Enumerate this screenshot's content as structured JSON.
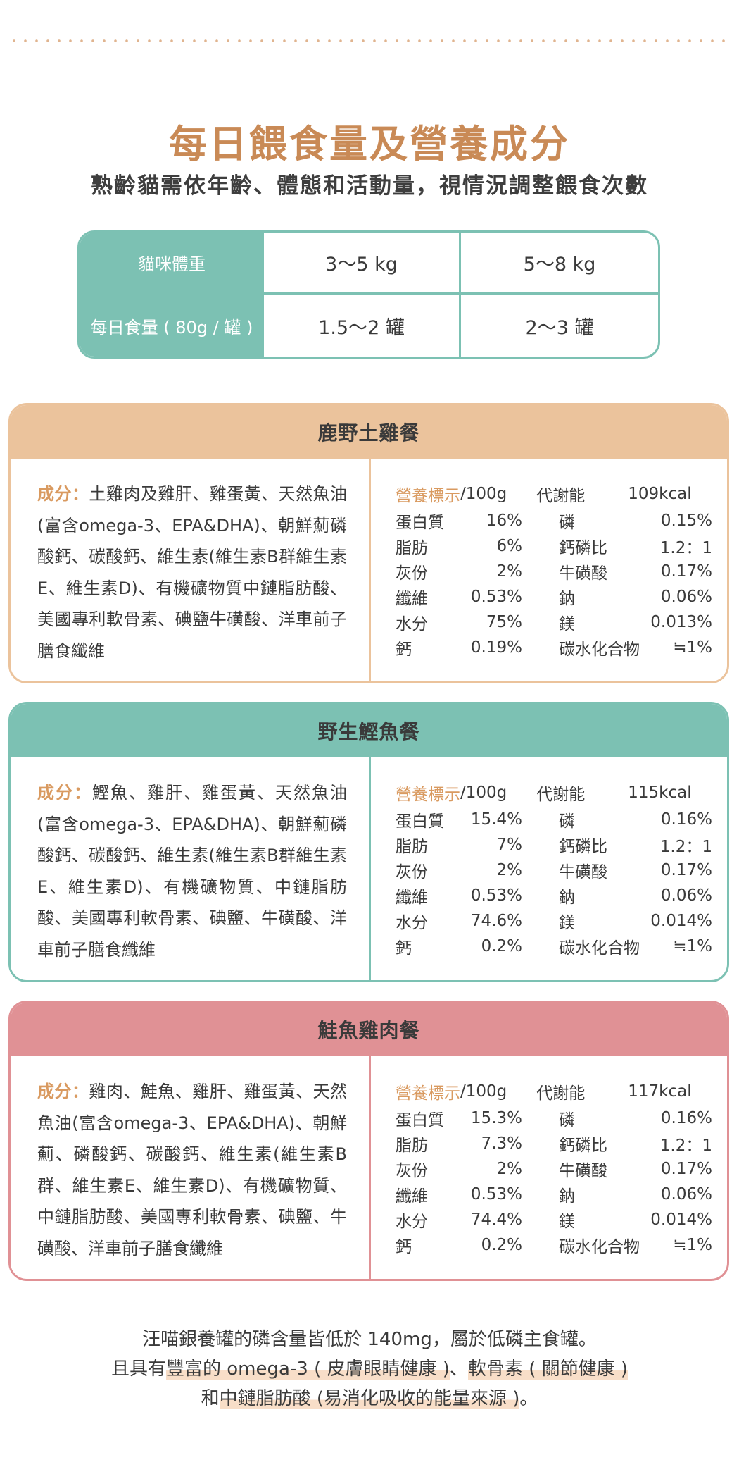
{
  "header": {
    "title": "每日餵食量及營養成分",
    "subtitle": "熟齡貓需依年齡、體態和活動量，視情況調整餵食次數"
  },
  "feeding_table": {
    "weight_label": "貓咪體重",
    "weight_1": "3～5 kg",
    "weight_2": "5～8 kg",
    "amount_label": "每日食量 ( 80g / 罐 )",
    "amount_1": "1.5～2 罐",
    "amount_2": "2～3 罐"
  },
  "products": [
    {
      "name": "鹿野土雞餐",
      "ingredients_label": "成分：",
      "ingredients": "土雞肉及雞肝、雞蛋黃、天然魚油(富含omega-3、EPA&DHA)、朝鮮薊磷酸鈣、碳酸鈣、維生素(維生素B群維生素E、維生素D)、有機礦物質中鏈脂肪酸、美國專利軟骨素、碘鹽牛磺酸、洋車前子膳食纖維",
      "nutrition_label": "營養標示",
      "nutrition_unit": "/100g",
      "energy_label": "代謝能",
      "energy": "109kcal",
      "rows": [
        {
          "k1": "蛋白質",
          "v1": "16%",
          "k2": "磷",
          "v2": "0.15%"
        },
        {
          "k1": "脂肪",
          "v1": "6%",
          "k2": "鈣磷比",
          "v2": "1.2：1"
        },
        {
          "k1": "灰份",
          "v1": "2%",
          "k2": "牛磺酸",
          "v2": "0.17%"
        },
        {
          "k1": "纖維",
          "v1": "0.53%",
          "k2": "鈉",
          "v2": "0.06%"
        },
        {
          "k1": "水分",
          "v1": "75%",
          "k2": "鎂",
          "v2": "0.013%"
        },
        {
          "k1": "鈣",
          "v1": "0.19%",
          "k2": "碳水化合物",
          "v2": "≒1%"
        }
      ]
    },
    {
      "name": "野生鰹魚餐",
      "ingredients_label": "成分：",
      "ingredients": "鰹魚、雞肝、雞蛋黃、天然魚油(富含omega-3、EPA&DHA)、朝鮮薊磷酸鈣、碳酸鈣、維生素(維生素B群維生素E、維生素D)、有機礦物質、中鏈脂肪酸、美國專利軟骨素、碘鹽、牛磺酸、洋車前子膳食纖維",
      "nutrition_label": "營養標示",
      "nutrition_unit": "/100g",
      "energy_label": "代謝能",
      "energy": "115kcal",
      "rows": [
        {
          "k1": "蛋白質",
          "v1": "15.4%",
          "k2": "磷",
          "v2": "0.16%"
        },
        {
          "k1": "脂肪",
          "v1": "7%",
          "k2": "鈣磷比",
          "v2": "1.2：1"
        },
        {
          "k1": "灰份",
          "v1": "2%",
          "k2": "牛磺酸",
          "v2": "0.17%"
        },
        {
          "k1": "纖維",
          "v1": "0.53%",
          "k2": "鈉",
          "v2": "0.06%"
        },
        {
          "k1": "水分",
          "v1": "74.6%",
          "k2": "鎂",
          "v2": "0.014%"
        },
        {
          "k1": "鈣",
          "v1": "0.2%",
          "k2": "碳水化合物",
          "v2": "≒1%"
        }
      ]
    },
    {
      "name": "鮭魚雞肉餐",
      "ingredients_label": "成分：",
      "ingredients": "雞肉、鮭魚、雞肝、雞蛋黃、天然魚油(富含omega-3、EPA&DHA)、朝鮮薊、磷酸鈣、碳酸鈣、維生素(維生素B群、維生素E、維生素D)、有機礦物質、中鏈脂肪酸、美國專利軟骨素、碘鹽、牛磺酸、洋車前子膳食纖維",
      "nutrition_label": "營養標示",
      "nutrition_unit": "/100g",
      "energy_label": "代謝能",
      "energy": "117kcal",
      "rows": [
        {
          "k1": "蛋白質",
          "v1": "15.3%",
          "k2": "磷",
          "v2": "0.16%"
        },
        {
          "k1": "脂肪",
          "v1": "7.3%",
          "k2": "鈣磷比",
          "v2": "1.2：1"
        },
        {
          "k1": "灰份",
          "v1": "2%",
          "k2": "牛磺酸",
          "v2": "0.17%"
        },
        {
          "k1": "纖維",
          "v1": "0.53%",
          "k2": "鈉",
          "v2": "0.06%"
        },
        {
          "k1": "水分",
          "v1": "74.4%",
          "k2": "鎂",
          "v2": "0.014%"
        },
        {
          "k1": "鈣",
          "v1": "0.2%",
          "k2": "碳水化合物",
          "v2": "≒1%"
        }
      ]
    }
  ],
  "footer": {
    "line1": "汪喵銀養罐的磷含量皆低於 140mg，屬於低磷主食罐。",
    "line2_pre": "且具有",
    "line2_hl1": "豐富的 omega-3 ( 皮膚眼睛健康 )",
    "line2_mid": "、",
    "line2_hl2": "軟骨素 ( 關節健康 )",
    "line3_pre": "和",
    "line3_hl": "中鏈脂肪酸 (易消化吸收的能量來源 )",
    "line3_post": "。"
  }
}
